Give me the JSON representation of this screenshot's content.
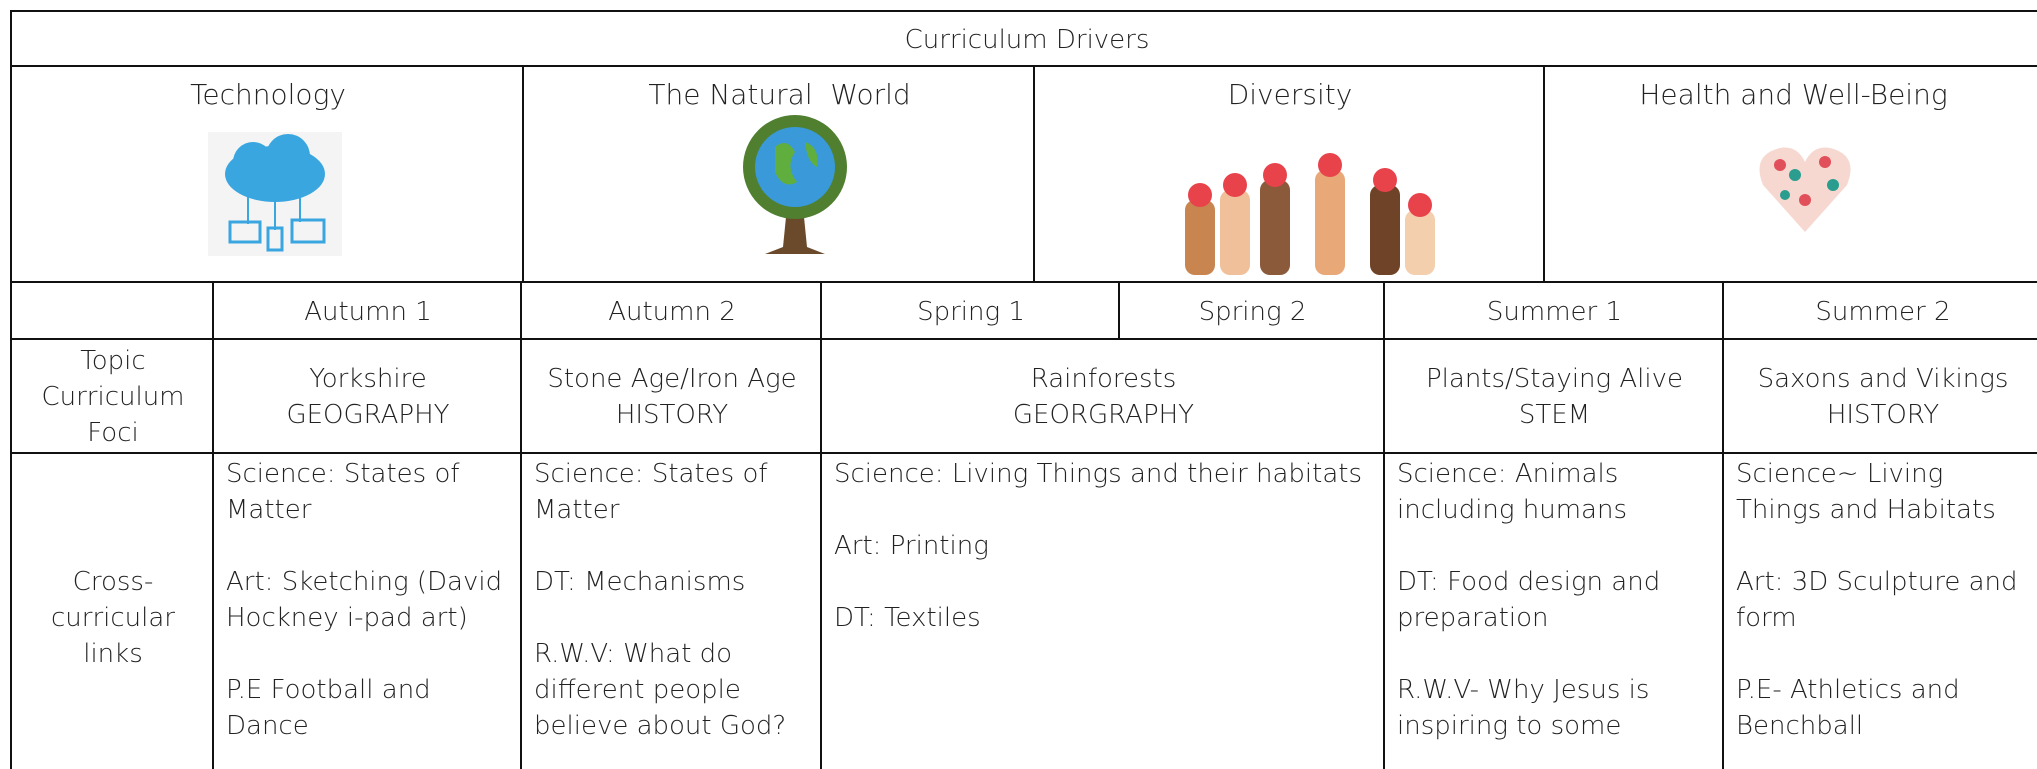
{
  "header": {
    "title": "Curriculum Drivers"
  },
  "drivers": [
    "Technology",
    "The Natural  World",
    "Diversity",
    "Health and Well-Being"
  ],
  "table": {
    "terms": [
      "Autumn 1",
      "Autumn 2",
      "Spring 1",
      "Spring 2",
      "Summer 1",
      "Summer 2"
    ],
    "rows": [
      {
        "label": "Topic Curriculum Foci",
        "cells": [
          [
            "Yorkshire",
            "GEOGRAPHY"
          ],
          [
            "Stone Age/Iron Age",
            "HISTORY"
          ],
          [
            "Rainforests",
            "GEORGRAPHY"
          ],
          [
            "Plants/Staying Alive",
            "STEM"
          ],
          [
            "Saxons and Vikings",
            "HISTORY"
          ]
        ]
      },
      {
        "label": "Cross-curricular links",
        "cells": [
          [
            "Science: States of Matter",
            "Art: Sketching (David Hockney i-pad art)",
            "P.E Football and Dance"
          ],
          [
            "Science: States of Matter",
            "DT: Mechanisms",
            "R.W.V: What do different people believe about God?"
          ],
          [
            "Science: Living Things and their habitats",
            "Art: Printing",
            "DT: Textiles"
          ],
          [
            "Science: Animals including humans",
            "DT: Food design and preparation",
            "R.W.V- Why Jesus is inspiring to some"
          ],
          [
            "Science~ Living Things and Habitats",
            "Art: 3D Sculpture and form",
            "P.E- Athletics and Benchball"
          ]
        ]
      }
    ]
  }
}
